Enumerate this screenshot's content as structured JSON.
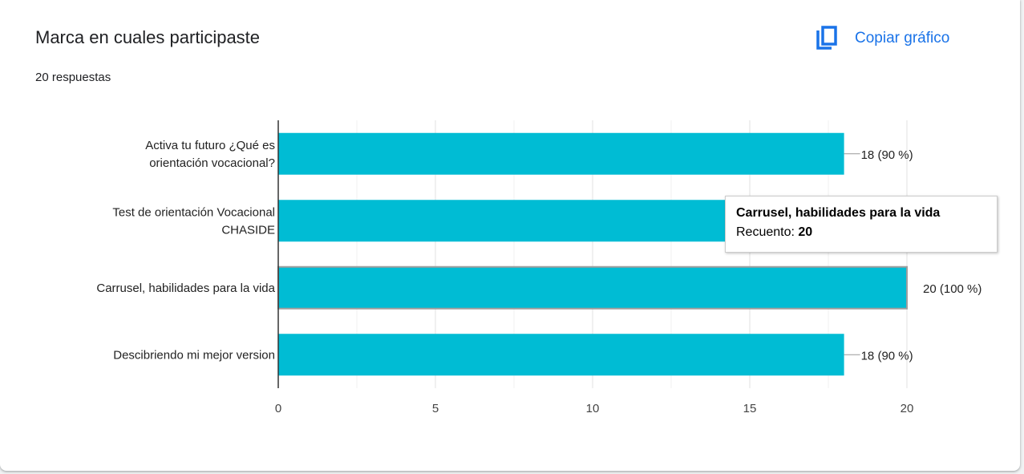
{
  "header": {
    "title": "Marca en cuales participaste",
    "responses": "20 respuestas",
    "copy_label": "Copiar gráfico",
    "copy_icon": "copy-icon"
  },
  "colors": {
    "bar": "#00bcd4",
    "accent": "#1a73e8",
    "grid": "#e6e6e6",
    "axis": "#333333"
  },
  "tooltip": {
    "title": "Carrusel, habilidades para la vida",
    "count_label": "Recuento:",
    "count_value": "20"
  },
  "chart_data": {
    "type": "bar",
    "orientation": "horizontal",
    "categories": [
      [
        "Activa tu futuro ¿Qué es",
        "orientación vocacional?"
      ],
      [
        "Test de orientación Vocacional",
        "CHASIDE"
      ],
      [
        "Carrusel, habilidades para la vida"
      ],
      [
        "Descibriendo mi mejor version"
      ]
    ],
    "values": [
      18,
      20,
      20,
      18
    ],
    "data_labels": [
      "18 (90 %)",
      "20 (100 %)",
      "20 (100 %)",
      "18 (90 %)"
    ],
    "highlighted_index": 2,
    "xlim": [
      0,
      20
    ],
    "xticks": [
      0,
      5,
      10,
      15,
      20
    ],
    "grid": true
  }
}
